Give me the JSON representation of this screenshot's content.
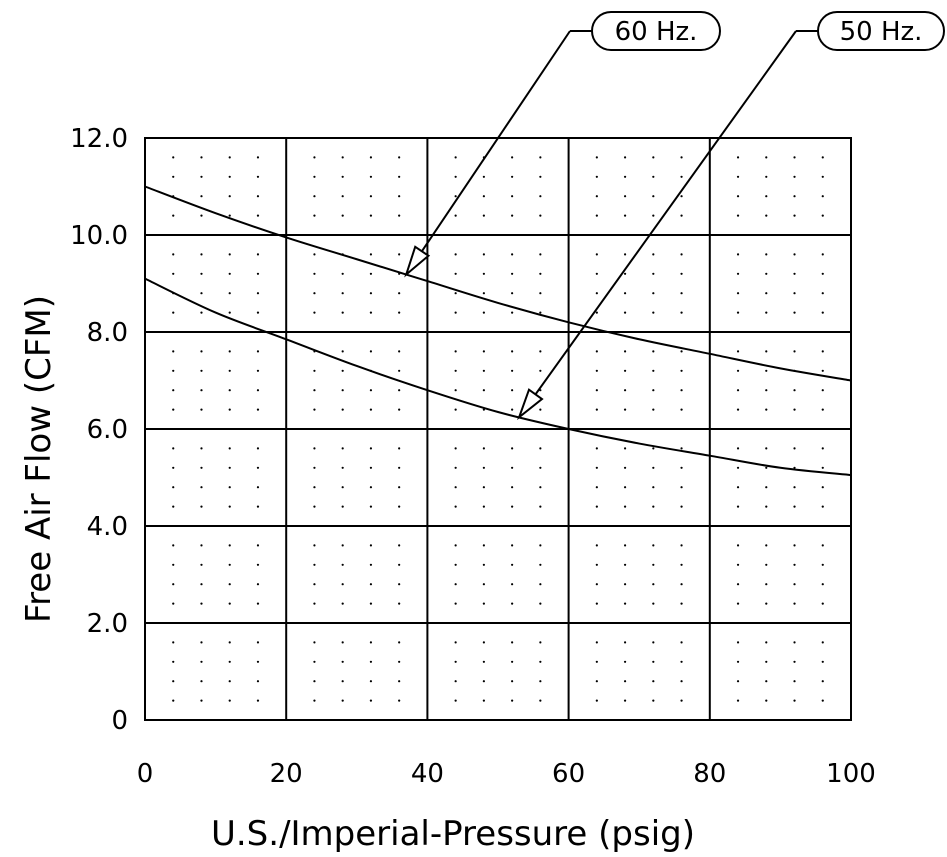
{
  "chart_data": {
    "type": "line",
    "xlabel": "U.S./Imperial-Pressure (psig)",
    "ylabel": "Free Air Flow (CFM)",
    "xlim": [
      0,
      100
    ],
    "ylim": [
      0,
      12
    ],
    "x_ticks": [
      "0",
      "20",
      "40",
      "60",
      "80",
      "100"
    ],
    "y_ticks": [
      "0",
      "2.0",
      "4.0",
      "6.0",
      "8.0",
      "10.0",
      "12.0"
    ],
    "grid": true,
    "minor_grid": "dotted",
    "series": [
      {
        "name": "60 Hz.",
        "x": [
          0,
          10,
          20,
          30,
          40,
          50,
          60,
          70,
          80,
          90,
          100
        ],
        "values": [
          11.0,
          10.45,
          9.95,
          9.5,
          9.05,
          8.6,
          8.2,
          7.85,
          7.55,
          7.25,
          7.0
        ]
      },
      {
        "name": "50 Hz.",
        "x": [
          0,
          10,
          20,
          30,
          40,
          50,
          60,
          70,
          80,
          90,
          100
        ],
        "values": [
          9.1,
          8.4,
          7.85,
          7.3,
          6.8,
          6.35,
          6.0,
          5.7,
          5.45,
          5.2,
          5.05
        ]
      }
    ],
    "annotations": [
      {
        "text": "60 Hz.",
        "series": 0,
        "point_x": 37
      },
      {
        "text": "50 Hz.",
        "series": 1,
        "point_x": 53
      }
    ]
  }
}
